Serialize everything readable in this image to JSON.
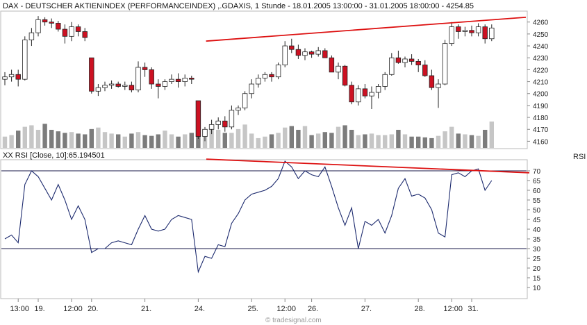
{
  "chart_data": {
    "type": "candlestick",
    "title": "DAX - DEUTSCHER AKTIENINDEX (PERFORMANCEINDEX) ,.GDAXIS, 1 Stunde - 18.01.2005 13:00:00 - 31.01.2005 18:00:00 - 4254.85",
    "price_ylim": [
      4155,
      4268
    ],
    "price_ticks": [
      4160,
      4170,
      4180,
      4190,
      4200,
      4210,
      4220,
      4230,
      4240,
      4250,
      4260
    ],
    "x_labels": [
      "13:00",
      "19.",
      "12:00",
      "20.",
      "21.",
      "24.",
      "25.",
      "12:00",
      "26.",
      "27.",
      "28.",
      "12:00",
      "31."
    ],
    "candles": [
      [
        4212,
        4218,
        4207,
        4214
      ],
      [
        4214,
        4220,
        4210,
        4216
      ],
      [
        4216,
        4220,
        4206,
        4212
      ],
      [
        4212,
        4248,
        4211,
        4245
      ],
      [
        4245,
        4255,
        4240,
        4251
      ],
      [
        4251,
        4265,
        4248,
        4262
      ],
      [
        4262,
        4264,
        4257,
        4260
      ],
      [
        4260,
        4263,
        4255,
        4259
      ],
      [
        4259,
        4261,
        4252,
        4254
      ],
      [
        4254,
        4258,
        4242,
        4248
      ],
      [
        4248,
        4260,
        4244,
        4256
      ],
      [
        4256,
        4258,
        4248,
        4252
      ],
      [
        4252,
        4255,
        4244,
        4247
      ],
      [
        4230,
        4230,
        4200,
        4202
      ],
      [
        4202,
        4208,
        4198,
        4205
      ],
      [
        4205,
        4210,
        4202,
        4207
      ],
      [
        4207,
        4211,
        4204,
        4208
      ],
      [
        4208,
        4210,
        4205,
        4206
      ],
      [
        4206,
        4210,
        4203,
        4207
      ],
      [
        4207,
        4210,
        4201,
        4203
      ],
      [
        4203,
        4227,
        4201,
        4222
      ],
      [
        4222,
        4226,
        4214,
        4220
      ],
      [
        4220,
        4222,
        4204,
        4208
      ],
      [
        4208,
        4212,
        4196,
        4206
      ],
      [
        4206,
        4212,
        4203,
        4210
      ],
      [
        4210,
        4216,
        4208,
        4212
      ],
      [
        4212,
        4217,
        4205,
        4210
      ],
      [
        4210,
        4216,
        4206,
        4213
      ],
      [
        4213,
        4215,
        4208,
        4212
      ],
      [
        4194,
        4194,
        4162,
        4164
      ],
      [
        4164,
        4172,
        4160,
        4170
      ],
      [
        4170,
        4178,
        4166,
        4174
      ],
      [
        4174,
        4180,
        4170,
        4177
      ],
      [
        4177,
        4181,
        4168,
        4172
      ],
      [
        4172,
        4190,
        4170,
        4186
      ],
      [
        4186,
        4190,
        4182,
        4188
      ],
      [
        4188,
        4202,
        4186,
        4200
      ],
      [
        4200,
        4212,
        4196,
        4208
      ],
      [
        4208,
        4216,
        4205,
        4213
      ],
      [
        4213,
        4218,
        4210,
        4216
      ],
      [
        4216,
        4218,
        4210,
        4214
      ],
      [
        4214,
        4226,
        4212,
        4224
      ],
      [
        4224,
        4244,
        4222,
        4240
      ],
      [
        4240,
        4246,
        4234,
        4237
      ],
      [
        4237,
        4241,
        4229,
        4232
      ],
      [
        4232,
        4238,
        4228,
        4235
      ],
      [
        4235,
        4236,
        4230,
        4233
      ],
      [
        4233,
        4239,
        4231,
        4236
      ],
      [
        4236,
        4238,
        4230,
        4230
      ],
      [
        4230,
        4232,
        4218,
        4218
      ],
      [
        4218,
        4226,
        4212,
        4223
      ],
      [
        4223,
        4224,
        4206,
        4207
      ],
      [
        4207,
        4210,
        4191,
        4193
      ],
      [
        4193,
        4207,
        4190,
        4204
      ],
      [
        4204,
        4208,
        4196,
        4198
      ],
      [
        4198,
        4206,
        4187,
        4201
      ],
      [
        4201,
        4208,
        4196,
        4206
      ],
      [
        4206,
        4218,
        4203,
        4216
      ],
      [
        4216,
        4234,
        4215,
        4230
      ],
      [
        4230,
        4236,
        4225,
        4226
      ],
      [
        4226,
        4231,
        4222,
        4229
      ],
      [
        4229,
        4233,
        4224,
        4227
      ],
      [
        4227,
        4229,
        4218,
        4224
      ],
      [
        4224,
        4228,
        4214,
        4215
      ],
      [
        4215,
        4220,
        4203,
        4205
      ],
      [
        4205,
        4212,
        4188,
        4208
      ],
      [
        4208,
        4245,
        4207,
        4242
      ],
      [
        4242,
        4260,
        4240,
        4256
      ],
      [
        4256,
        4258,
        4246,
        4252
      ],
      [
        4252,
        4256,
        4248,
        4253
      ],
      [
        4253,
        4257,
        4248,
        4251
      ],
      [
        4251,
        4259,
        4248,
        4256
      ],
      [
        4256,
        4258,
        4242,
        4246
      ],
      [
        4246,
        4258,
        4244,
        4255
      ]
    ],
    "volume": [
      30,
      34,
      46,
      56,
      60,
      48,
      64,
      48,
      44,
      40,
      42,
      38,
      36,
      50,
      54,
      42,
      38,
      36,
      30,
      38,
      42,
      34,
      32,
      36,
      46,
      36,
      30,
      36,
      40,
      46,
      44,
      56,
      48,
      40,
      40,
      50,
      62,
      38,
      26,
      30,
      36,
      40,
      54,
      58,
      48,
      58,
      34,
      38,
      42,
      40,
      56,
      60,
      48,
      34,
      36,
      38,
      34,
      34,
      36,
      48,
      36,
      30,
      30,
      28,
      26,
      32,
      44,
      56,
      38,
      36,
      34,
      32,
      48,
      70
    ],
    "resistance_line": {
      "from": [
        31,
        4244
      ],
      "to": [
        75,
        4264
      ]
    },
    "rsi": {
      "label": "XX RSI [Close, 10]:65.194501",
      "axis_label": "RSI",
      "ylim": [
        5,
        75
      ],
      "ticks": [
        10,
        15,
        20,
        25,
        30,
        35,
        40,
        45,
        50,
        55,
        60,
        65,
        70
      ],
      "levels": [
        70,
        30
      ],
      "values": [
        35,
        37,
        33,
        63,
        70,
        67,
        61,
        55,
        63,
        55,
        45,
        52,
        45,
        28,
        30,
        30,
        33,
        34,
        33,
        32,
        40,
        47,
        40,
        39,
        40,
        45,
        47,
        46,
        45,
        18,
        26,
        25,
        32,
        31,
        43,
        48,
        55,
        58,
        59,
        60,
        62,
        66,
        75,
        72,
        66,
        70,
        68,
        67,
        72,
        62,
        51,
        42,
        51,
        30,
        44,
        42,
        45,
        38,
        47,
        61,
        66,
        57,
        58,
        56,
        50,
        38,
        36,
        68,
        69,
        67,
        70,
        71,
        60,
        65
      ],
      "divergence_line": {
        "from": [
          30,
          76
        ],
        "to": [
          55,
          69
        ]
      }
    },
    "watermark": "© tradesignal.com"
  }
}
